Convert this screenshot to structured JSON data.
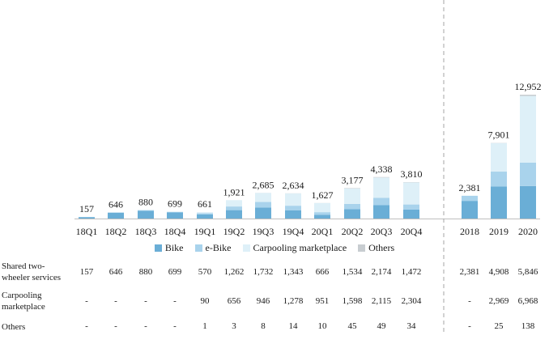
{
  "chart_data": {
    "type": "bar",
    "stacked": true,
    "categories": [
      "18Q1",
      "18Q2",
      "18Q3",
      "18Q4",
      "19Q1",
      "19Q2",
      "19Q3",
      "19Q4",
      "20Q1",
      "20Q2",
      "20Q3",
      "20Q4",
      "2018",
      "2019",
      "2020"
    ],
    "series": [
      {
        "name": "Bike",
        "color": "#6aaed6",
        "values": [
          150,
          600,
          820,
          640,
          430,
          880,
          1150,
          870,
          400,
          990,
          1400,
          940,
          1850,
          3350,
          3400
        ]
      },
      {
        "name": "e-Bike",
        "color": "#a9d3ec",
        "values": [
          7,
          46,
          60,
          59,
          140,
          382,
          582,
          473,
          266,
          544,
          774,
          532,
          531,
          1558,
          2446
        ]
      },
      {
        "name": "Carpooling marketplace",
        "color": "#def0f8",
        "values": [
          0,
          0,
          0,
          0,
          90,
          656,
          946,
          1278,
          951,
          1598,
          2115,
          2304,
          0,
          2969,
          6968
        ]
      },
      {
        "name": "Others",
        "color": "#c8cdd1",
        "values": [
          0,
          0,
          0,
          0,
          1,
          3,
          8,
          14,
          10,
          45,
          49,
          34,
          0,
          25,
          138
        ]
      }
    ],
    "totals": [
      "157",
      "646",
      "880",
      "699",
      "661",
      "1,921",
      "2,685",
      "2,634",
      "1,627",
      "3,177",
      "4,338",
      "3,810",
      "2,381",
      "7,901",
      "12,952"
    ],
    "ylim": [
      0,
      13000
    ],
    "legend_position": "bottom"
  },
  "table": {
    "rows": [
      {
        "label": "Shared two-\nwheeler services",
        "values": [
          "157",
          "646",
          "880",
          "699",
          "570",
          "1,262",
          "1,732",
          "1,343",
          "666",
          "1,534",
          "2,174",
          "1,472",
          "2,381",
          "4,908",
          "5,846"
        ]
      },
      {
        "label": "Carpooling\nmarketplace",
        "values": [
          "-",
          "-",
          "-",
          "-",
          "90",
          "656",
          "946",
          "1,278",
          "951",
          "1,598",
          "2,115",
          "2,304",
          "-",
          "2,969",
          "6,968"
        ]
      },
      {
        "label": "Others",
        "values": [
          "-",
          "-",
          "-",
          "-",
          "1",
          "3",
          "8",
          "14",
          "10",
          "45",
          "49",
          "34",
          "-",
          "25",
          "138"
        ]
      }
    ]
  }
}
